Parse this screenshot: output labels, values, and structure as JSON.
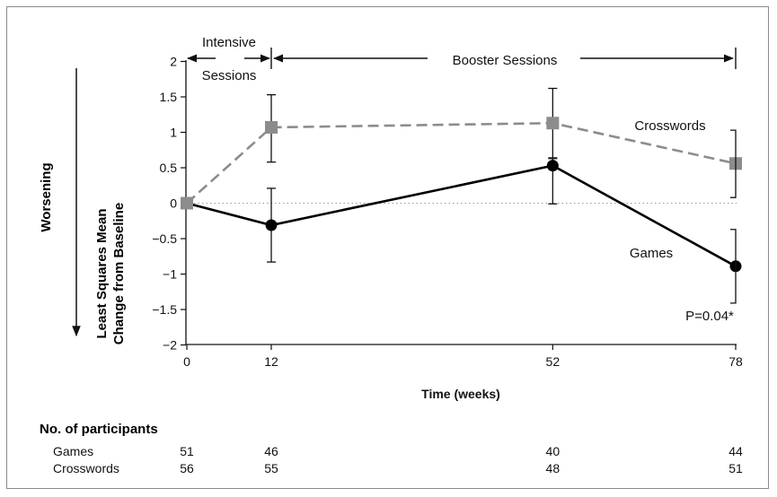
{
  "chart_data": {
    "type": "line",
    "title": "",
    "xlabel": "Time (weeks)",
    "ylabel": "Least Squares Mean Change from Baseline",
    "side_label": "Worsening",
    "ylim": [
      -2,
      2
    ],
    "yticks": [
      "−2",
      "−1.5",
      "−1",
      "−0.5",
      "0",
      "0.5",
      "1",
      "1.5",
      "2"
    ],
    "x_ticks": [
      "0",
      "12",
      "52",
      "78"
    ],
    "x": [
      0,
      12,
      52,
      78
    ],
    "series": [
      {
        "name": "Crosswords",
        "color": "#8c8c8c",
        "marker": "square",
        "dash": true,
        "values": [
          0,
          1.07,
          1.13,
          0.56
        ],
        "err_low": [
          0,
          0.58,
          0.63,
          0.08
        ],
        "err_high": [
          0,
          1.53,
          1.62,
          1.03
        ]
      },
      {
        "name": "Games",
        "color": "#000000",
        "marker": "circle",
        "dash": false,
        "values": [
          0,
          -0.31,
          0.53,
          -0.89
        ],
        "err_low": [
          0,
          -0.83,
          -0.01,
          -1.41
        ],
        "err_high": [
          0,
          0.21,
          0.64,
          -0.37
        ]
      }
    ],
    "annotations": {
      "intensive_line1": "Intensive",
      "intensive_line2": "Sessions",
      "booster": "Booster Sessions",
      "pvalue": "P=0.04*"
    },
    "participants": {
      "title": "No. of participants",
      "rows": [
        {
          "label": "Games",
          "values": [
            "51",
            "46",
            "40",
            "44"
          ]
        },
        {
          "label": "Crosswords",
          "values": [
            "56",
            "55",
            "48",
            "51"
          ]
        }
      ]
    }
  }
}
